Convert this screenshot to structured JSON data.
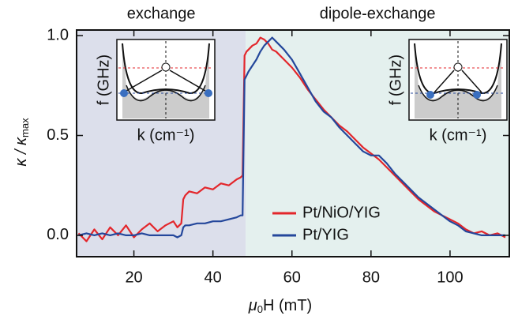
{
  "chart_data": {
    "type": "line",
    "xlabel_parts": [
      "μ",
      "0",
      "H (mT)"
    ],
    "ylabel_parts": [
      "κ / κ",
      "max"
    ],
    "regions": [
      {
        "label": "exchange",
        "range": [
          5.5,
          48.3
        ],
        "color": "#dcdfeb"
      },
      {
        "label": "dipole-exchange",
        "range": [
          48.3,
          115
        ],
        "color": "#e4f0ee"
      }
    ],
    "insets": [
      {
        "ylabel": "f (GHz)",
        "xlabel": "k (cm⁻¹)"
      },
      {
        "ylabel": "f (GHz)",
        "xlabel": "k (cm⁻¹)"
      }
    ],
    "x": [
      6,
      8,
      10,
      12,
      14,
      16,
      18,
      20,
      22,
      24,
      26,
      28,
      30,
      31,
      32,
      32.5,
      33,
      34,
      36,
      38,
      40,
      42,
      44,
      46,
      47,
      47.5,
      48,
      48.5,
      49,
      50,
      51,
      52,
      53,
      54,
      55,
      56,
      58,
      60,
      62,
      64,
      66,
      68,
      70,
      72,
      74,
      76,
      78,
      80,
      82,
      84,
      86,
      88,
      90,
      92,
      94,
      96,
      98,
      100,
      102,
      104,
      106,
      108,
      110,
      112,
      114
    ],
    "series": [
      {
        "name": "Pt/NiO/YIG",
        "color": "#e3262b",
        "values": [
          0.01,
          -0.03,
          0.03,
          -0.02,
          0.04,
          0.0,
          0.05,
          -0.01,
          0.03,
          0.06,
          0.02,
          0.05,
          0.07,
          0.04,
          0.06,
          0.18,
          0.2,
          0.22,
          0.21,
          0.24,
          0.23,
          0.26,
          0.25,
          0.28,
          0.29,
          0.3,
          0.9,
          0.92,
          0.93,
          0.95,
          0.96,
          0.99,
          0.98,
          0.96,
          0.93,
          0.92,
          0.88,
          0.84,
          0.79,
          0.73,
          0.68,
          0.63,
          0.59,
          0.55,
          0.52,
          0.48,
          0.44,
          0.41,
          0.38,
          0.34,
          0.3,
          0.26,
          0.22,
          0.18,
          0.15,
          0.12,
          0.1,
          0.08,
          0.06,
          0.03,
          0.01,
          0.02,
          0.0,
          0.01,
          -0.01
        ]
      },
      {
        "name": "Pt/YIG",
        "color": "#24479b",
        "values": [
          0.0,
          0.01,
          0.0,
          0.01,
          0.0,
          0.01,
          0.0,
          0.0,
          0.01,
          0.0,
          0.0,
          0.0,
          0.0,
          -0.01,
          0.0,
          0.04,
          0.05,
          0.05,
          0.06,
          0.06,
          0.07,
          0.07,
          0.08,
          0.09,
          0.1,
          0.1,
          0.78,
          0.8,
          0.82,
          0.85,
          0.88,
          0.92,
          0.95,
          0.97,
          0.99,
          0.97,
          0.93,
          0.88,
          0.81,
          0.74,
          0.67,
          0.62,
          0.59,
          0.54,
          0.5,
          0.46,
          0.42,
          0.4,
          0.4,
          0.36,
          0.31,
          0.27,
          0.23,
          0.19,
          0.16,
          0.13,
          0.1,
          0.07,
          0.05,
          0.02,
          0.01,
          0.0,
          0.0,
          0.0,
          0.0
        ]
      }
    ],
    "xlim": [
      5.5,
      115
    ],
    "ylim": [
      -0.107,
      1.028
    ],
    "xticks": [
      20,
      40,
      60,
      80,
      100
    ],
    "yticks": [
      {
        "value": 0,
        "label": "0.0"
      },
      {
        "value": 0.5,
        "label": "0.5"
      },
      {
        "value": 1,
        "label": "1.0"
      }
    ]
  }
}
